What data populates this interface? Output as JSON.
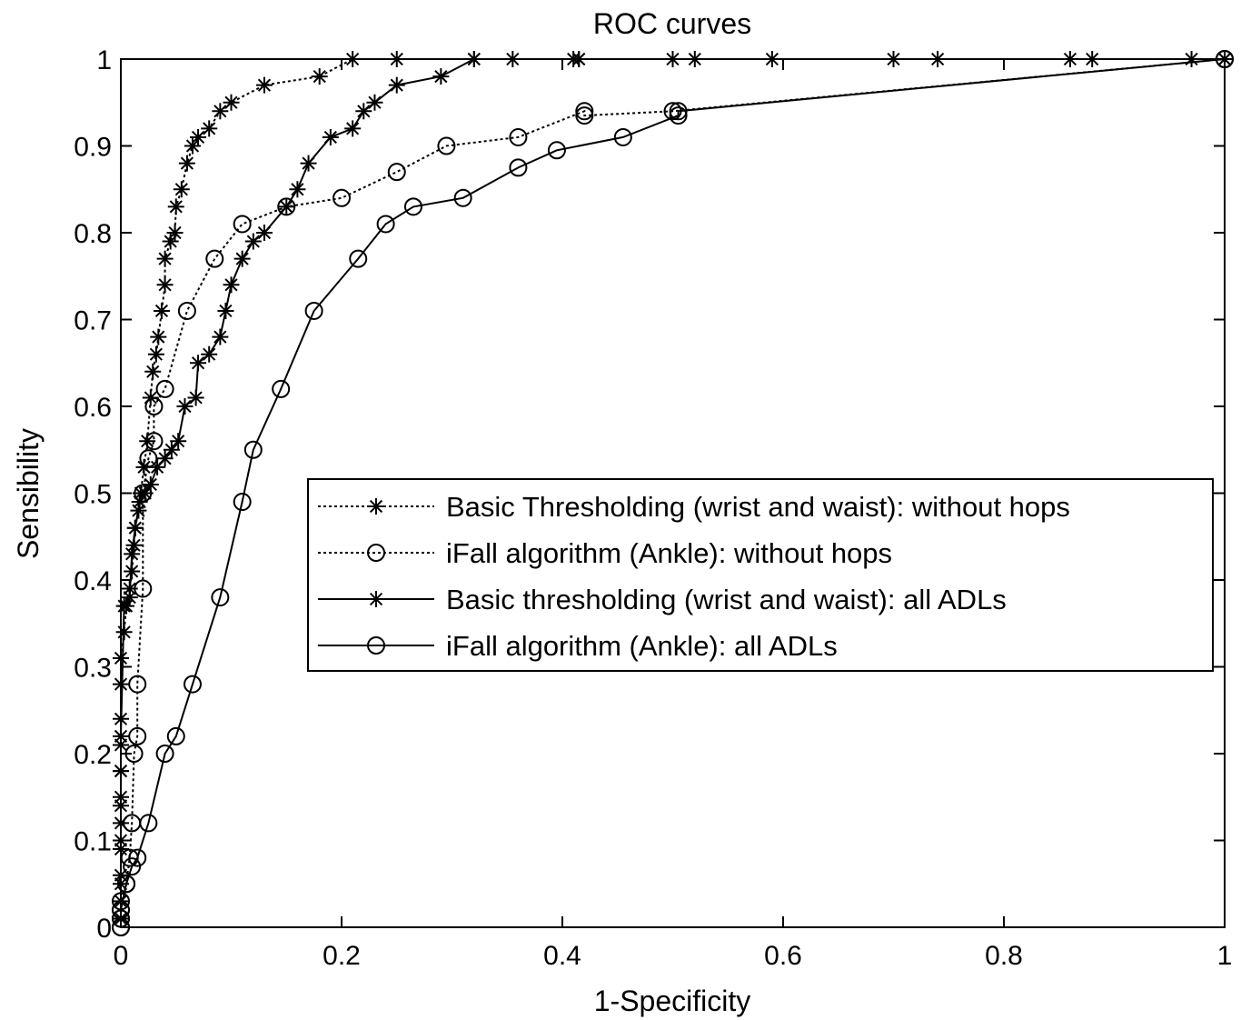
{
  "chart_data": {
    "type": "line",
    "title": "ROC curves",
    "xlabel": "1-Specificity",
    "ylabel": "Sensibility",
    "xlim": [
      0,
      1
    ],
    "ylim": [
      0,
      1
    ],
    "xticks": [
      "0",
      "0.2",
      "0.4",
      "0.6",
      "0.8",
      "1"
    ],
    "yticks": [
      "0",
      "0.1",
      "0.2",
      "0.3",
      "0.4",
      "0.5",
      "0.6",
      "0.7",
      "0.8",
      "0.9",
      "1"
    ],
    "grid": false,
    "legend_position": "center-right",
    "series": [
      {
        "name": "Basic Thresholding (wrist and waist): without hops",
        "line": "dotted",
        "marker": "star",
        "points": [
          [
            0,
            0.01
          ],
          [
            0,
            0.03
          ],
          [
            0,
            0.06
          ],
          [
            0,
            0.09
          ],
          [
            0,
            0.12
          ],
          [
            0,
            0.15
          ],
          [
            0,
            0.18
          ],
          [
            0,
            0.21
          ],
          [
            0,
            0.24
          ],
          [
            0,
            0.28
          ],
          [
            0,
            0.31
          ],
          [
            0.003,
            0.34
          ],
          [
            0.005,
            0.37
          ],
          [
            0.008,
            0.39
          ],
          [
            0.01,
            0.41
          ],
          [
            0.012,
            0.44
          ],
          [
            0.013,
            0.46
          ],
          [
            0.016,
            0.48
          ],
          [
            0.018,
            0.5
          ],
          [
            0.021,
            0.53
          ],
          [
            0.024,
            0.56
          ],
          [
            0.027,
            0.61
          ],
          [
            0.029,
            0.64
          ],
          [
            0.032,
            0.66
          ],
          [
            0.034,
            0.68
          ],
          [
            0.037,
            0.71
          ],
          [
            0.04,
            0.74
          ],
          [
            0.04,
            0.77
          ],
          [
            0.045,
            0.79
          ],
          [
            0.049,
            0.8
          ],
          [
            0.05,
            0.83
          ],
          [
            0.055,
            0.85
          ],
          [
            0.06,
            0.88
          ],
          [
            0.065,
            0.9
          ],
          [
            0.07,
            0.91
          ],
          [
            0.08,
            0.92
          ],
          [
            0.09,
            0.94
          ],
          [
            0.1,
            0.95
          ],
          [
            0.13,
            0.97
          ],
          [
            0.18,
            0.98
          ],
          [
            0.21,
            1
          ],
          [
            0.25,
            1
          ],
          [
            0.32,
            1
          ],
          [
            0.355,
            1
          ],
          [
            0.415,
            1
          ],
          [
            0.415,
            1
          ],
          [
            0.5,
            1
          ],
          [
            0.52,
            1
          ],
          [
            0.59,
            1
          ],
          [
            0.7,
            1
          ],
          [
            0.74,
            1
          ],
          [
            0.86,
            1
          ],
          [
            0.88,
            1
          ],
          [
            0.97,
            1
          ],
          [
            1,
            1
          ]
        ]
      },
      {
        "name": "iFall algorithm (Ankle): without hops",
        "line": "dotted",
        "marker": "circle",
        "points": [
          [
            0,
            0
          ],
          [
            0,
            0.01
          ],
          [
            0,
            0.02
          ],
          [
            0,
            0.03
          ],
          [
            0.005,
            0.05
          ],
          [
            0.008,
            0.08
          ],
          [
            0.01,
            0.12
          ],
          [
            0.012,
            0.2
          ],
          [
            0.015,
            0.22
          ],
          [
            0.015,
            0.28
          ],
          [
            0.02,
            0.39
          ],
          [
            0.02,
            0.5
          ],
          [
            0.025,
            0.54
          ],
          [
            0.03,
            0.56
          ],
          [
            0.03,
            0.6
          ],
          [
            0.04,
            0.62
          ],
          [
            0.06,
            0.71
          ],
          [
            0.085,
            0.77
          ],
          [
            0.11,
            0.81
          ],
          [
            0.15,
            0.83
          ],
          [
            0.2,
            0.84
          ],
          [
            0.25,
            0.87
          ],
          [
            0.295,
            0.9
          ],
          [
            0.36,
            0.91
          ],
          [
            0.42,
            0.94
          ],
          [
            0.42,
            0.935
          ],
          [
            0.5,
            0.94
          ],
          [
            1,
            1
          ]
        ]
      },
      {
        "name": "Basic thresholding (wrist and waist): all ADLs",
        "line": "solid",
        "marker": "star",
        "points": [
          [
            0,
            0.01
          ],
          [
            0,
            0.05
          ],
          [
            0,
            0.1
          ],
          [
            0,
            0.14
          ],
          [
            0,
            0.18
          ],
          [
            0,
            0.22
          ],
          [
            0.003,
            0.37
          ],
          [
            0.008,
            0.38
          ],
          [
            0.01,
            0.43
          ],
          [
            0.013,
            0.46
          ],
          [
            0.017,
            0.49
          ],
          [
            0.022,
            0.5
          ],
          [
            0.027,
            0.51
          ],
          [
            0.033,
            0.53
          ],
          [
            0.04,
            0.54
          ],
          [
            0.046,
            0.55
          ],
          [
            0.052,
            0.56
          ],
          [
            0.058,
            0.6
          ],
          [
            0.068,
            0.61
          ],
          [
            0.07,
            0.65
          ],
          [
            0.08,
            0.66
          ],
          [
            0.09,
            0.68
          ],
          [
            0.095,
            0.71
          ],
          [
            0.1,
            0.74
          ],
          [
            0.11,
            0.77
          ],
          [
            0.12,
            0.79
          ],
          [
            0.13,
            0.8
          ],
          [
            0.15,
            0.83
          ],
          [
            0.16,
            0.85
          ],
          [
            0.17,
            0.88
          ],
          [
            0.19,
            0.91
          ],
          [
            0.21,
            0.92
          ],
          [
            0.22,
            0.94
          ],
          [
            0.23,
            0.95
          ],
          [
            0.25,
            0.97
          ],
          [
            0.29,
            0.98
          ],
          [
            0.32,
            1
          ],
          [
            0.41,
            1
          ],
          [
            1,
            1
          ]
        ]
      },
      {
        "name": "iFall algorithm (Ankle): all ADLs",
        "line": "solid",
        "marker": "circle",
        "points": [
          [
            0,
            0
          ],
          [
            0,
            0.01
          ],
          [
            0,
            0.02
          ],
          [
            0.005,
            0.05
          ],
          [
            0.01,
            0.07
          ],
          [
            0.015,
            0.08
          ],
          [
            0.025,
            0.12
          ],
          [
            0.04,
            0.2
          ],
          [
            0.05,
            0.22
          ],
          [
            0.065,
            0.28
          ],
          [
            0.09,
            0.38
          ],
          [
            0.11,
            0.49
          ],
          [
            0.12,
            0.55
          ],
          [
            0.145,
            0.62
          ],
          [
            0.175,
            0.71
          ],
          [
            0.215,
            0.77
          ],
          [
            0.24,
            0.81
          ],
          [
            0.265,
            0.83
          ],
          [
            0.31,
            0.84
          ],
          [
            0.36,
            0.875
          ],
          [
            0.395,
            0.895
          ],
          [
            0.455,
            0.91
          ],
          [
            0.505,
            0.935
          ],
          [
            0.505,
            0.94
          ],
          [
            1,
            1
          ]
        ]
      }
    ]
  }
}
